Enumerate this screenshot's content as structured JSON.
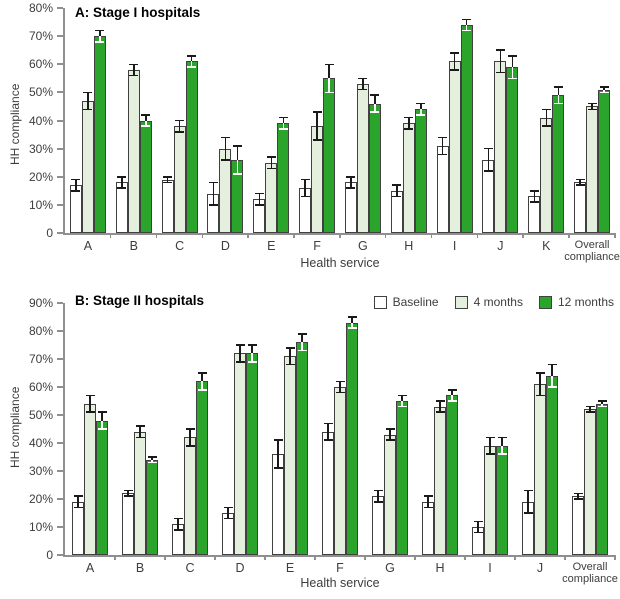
{
  "figure": {
    "panel_a": {
      "title": "A: Stage I hospitals",
      "ylabel": "HH compliance",
      "xlabel": "Health service"
    },
    "panel_b": {
      "title": "B: Stage II hospitals",
      "ylabel": "HH compliance",
      "xlabel": "Health service"
    },
    "legend": {
      "items": [
        {
          "label": "Baseline",
          "fill": "#ffffff",
          "border": "#404040"
        },
        {
          "label": "4 months",
          "fill": "#e4f0dd",
          "border": "#404040"
        },
        {
          "label": "12 months",
          "fill": "#2ba42b",
          "border": "#404040"
        }
      ]
    }
  },
  "colors": {
    "axis": "#8f8f8f",
    "text": "#3d3d3d",
    "error_bar": "#1a1a1a",
    "series": [
      {
        "name": "Baseline",
        "fill": "#ffffff",
        "border": "#404040",
        "error_inside": "#1a1a1a"
      },
      {
        "name": "4 months",
        "fill": "#e4f0dd",
        "border": "#404040",
        "error_inside": "#1a1a1a"
      },
      {
        "name": "12 months",
        "fill": "#2ba42b",
        "border": "#404040",
        "error_inside": "#ffffff"
      }
    ]
  },
  "chart_data": [
    {
      "type": "bar",
      "title": "A: Stage I hospitals",
      "xlabel": "Health service",
      "ylabel": "HH compliance",
      "ylim": [
        0,
        80
      ],
      "ytick_step": 10,
      "ytick_format": "percent",
      "grid": false,
      "legend_position": "none",
      "categories": [
        "A",
        "B",
        "C",
        "D",
        "E",
        "F",
        "G",
        "H",
        "I",
        "J",
        "K",
        "Overall compliance"
      ],
      "series": [
        {
          "name": "Baseline",
          "values": [
            17,
            18,
            19,
            14,
            12,
            16,
            18,
            15,
            31,
            26,
            13,
            18
          ],
          "errors": [
            2,
            2,
            1,
            4,
            2,
            3,
            2,
            2,
            3,
            4,
            2,
            1
          ]
        },
        {
          "name": "4 months",
          "values": [
            47,
            58,
            38,
            30,
            25,
            38,
            53,
            39,
            61,
            61,
            41,
            45
          ],
          "errors": [
            3,
            2,
            2,
            4,
            2,
            5,
            2,
            2,
            3,
            4,
            3,
            1
          ]
        },
        {
          "name": "12 months",
          "values": [
            70,
            40,
            61,
            26,
            39,
            55,
            46,
            44,
            74,
            59,
            49,
            51
          ],
          "errors": [
            2,
            2,
            2,
            5,
            2,
            5,
            3,
            2,
            2,
            4,
            3,
            1
          ]
        }
      ]
    },
    {
      "type": "bar",
      "title": "B: Stage II hospitals",
      "xlabel": "Health service",
      "ylabel": "HH compliance",
      "ylim": [
        0,
        90
      ],
      "ytick_step": 10,
      "ytick_format": "percent",
      "grid": false,
      "legend_position": "top-right",
      "categories": [
        "A",
        "B",
        "C",
        "D",
        "E",
        "F",
        "G",
        "H",
        "I",
        "J",
        "Overall compliance"
      ],
      "series": [
        {
          "name": "Baseline",
          "values": [
            19,
            22,
            11,
            15,
            36,
            44,
            21,
            19,
            10,
            19,
            21
          ],
          "errors": [
            2,
            1,
            2,
            2,
            5,
            3,
            2,
            2,
            2,
            4,
            1
          ]
        },
        {
          "name": "4 months",
          "values": [
            54,
            44,
            42,
            72,
            71,
            60,
            43,
            53,
            39,
            61,
            52
          ],
          "errors": [
            3,
            2,
            3,
            3,
            3,
            2,
            2,
            2,
            3,
            4,
            1
          ]
        },
        {
          "name": "12 months",
          "values": [
            48,
            34,
            62,
            72,
            76,
            83,
            55,
            57,
            39,
            64,
            54
          ],
          "errors": [
            3,
            1,
            3,
            3,
            3,
            2,
            2,
            2,
            3,
            4,
            1
          ]
        }
      ]
    }
  ]
}
